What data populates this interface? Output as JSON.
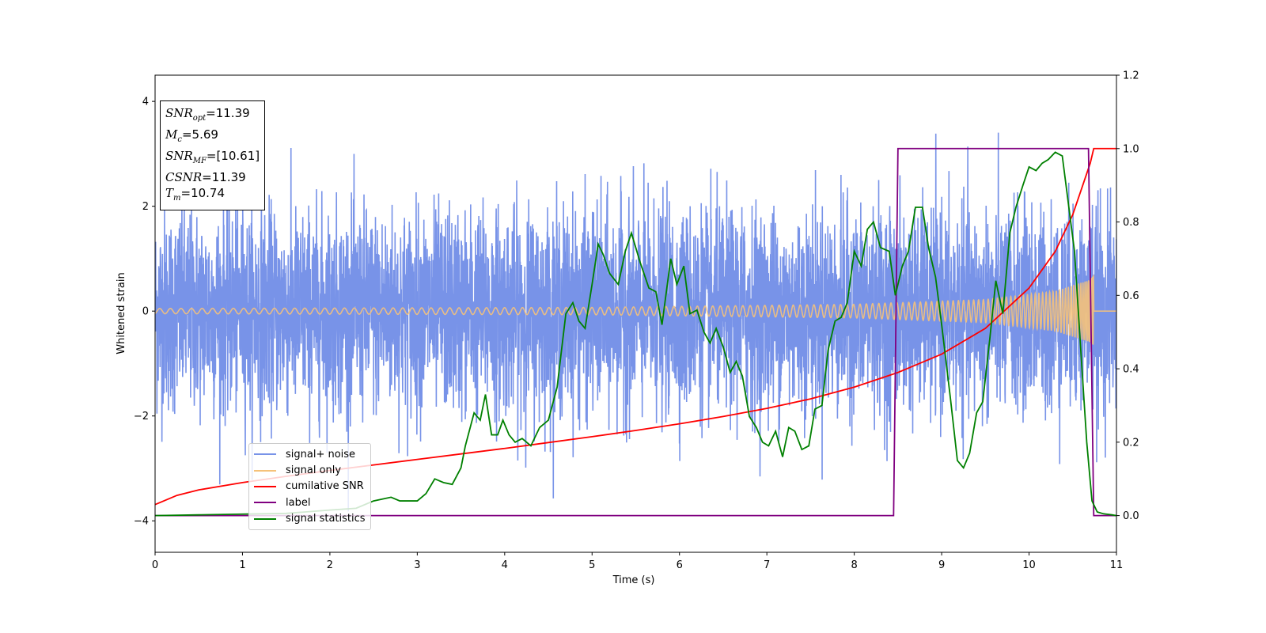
{
  "chart_data": {
    "type": "line",
    "xlabel": "Time (s)",
    "ylabel": "Whitened strain",
    "xlim": [
      0,
      11
    ],
    "ylim": [
      -4.6,
      4.5
    ],
    "y2lim": [
      -0.1,
      1.2
    ],
    "x_ticks": [
      "0",
      "1",
      "2",
      "3",
      "4",
      "5",
      "6",
      "7",
      "8",
      "9",
      "10",
      "11"
    ],
    "y_ticks": [
      "4",
      "2",
      "0",
      "−2",
      "−4"
    ],
    "y2_ticks": [
      "1.2",
      "1.0",
      "0.8",
      "0.6",
      "0.4",
      "0.2",
      "0.0"
    ],
    "legend_position": "lower-left",
    "annotation": {
      "snr_opt": {
        "sym": "SNR",
        "sub": "opt",
        "val": "=11.39"
      },
      "mc": {
        "sym": "M",
        "sub": "c",
        "val": "=5.69"
      },
      "snr_mf": {
        "sym": "SNR",
        "sub": "MF",
        "val": "=[10.61]"
      },
      "csnr": {
        "sym": "CSNR",
        "sub": "",
        "val": "=11.39"
      },
      "tm": {
        "sym": "T",
        "sub": "m",
        "val": "=10.74"
      }
    },
    "series": [
      {
        "name": "signal+ noise",
        "color": "#7893e8",
        "axis": "left",
        "description_type": "noise",
        "core_amplitude": 1.6,
        "spike_amplitude": 4.1
      },
      {
        "name": "signal only",
        "color": "#f5c27a",
        "axis": "left",
        "envelope": {
          "x": [
            0,
            5,
            8,
            9.5,
            10.3,
            10.7,
            10.74
          ],
          "amp": [
            0.05,
            0.07,
            0.13,
            0.22,
            0.38,
            0.6,
            0.7
          ]
        }
      },
      {
        "name": "cumilative SNR",
        "color": "#ff0000",
        "axis": "right",
        "x": [
          0,
          0.25,
          0.5,
          1,
          1.5,
          2,
          2.5,
          3,
          3.5,
          4,
          4.5,
          5,
          5.5,
          6,
          6.5,
          7,
          7.5,
          8,
          8.5,
          9,
          9.5,
          10,
          10.3,
          10.5,
          10.6,
          10.7,
          10.74,
          10.78,
          11
        ],
        "y": [
          0.03,
          0.055,
          0.07,
          0.09,
          0.107,
          0.123,
          0.138,
          0.153,
          0.168,
          0.183,
          0.199,
          0.215,
          0.232,
          0.25,
          0.27,
          0.292,
          0.318,
          0.35,
          0.39,
          0.44,
          0.51,
          0.62,
          0.72,
          0.82,
          0.89,
          0.96,
          1.0,
          1.0,
          1.0
        ]
      },
      {
        "name": "label",
        "color": "#800080",
        "axis": "right",
        "x": [
          0,
          8.45,
          8.5,
          10.68,
          10.74,
          11
        ],
        "y": [
          0,
          0,
          1,
          1,
          0,
          0
        ]
      },
      {
        "name": "signal statistics",
        "color": "#008000",
        "axis": "right",
        "x": [
          0,
          0.5,
          1,
          1.5,
          2,
          2.3,
          2.5,
          2.7,
          2.8,
          3.0,
          3.1,
          3.2,
          3.3,
          3.4,
          3.5,
          3.55,
          3.65,
          3.72,
          3.78,
          3.85,
          3.92,
          3.98,
          4.05,
          4.12,
          4.2,
          4.3,
          4.4,
          4.5,
          4.6,
          4.7,
          4.78,
          4.85,
          4.92,
          5.0,
          5.07,
          5.13,
          5.2,
          5.3,
          5.38,
          5.45,
          5.55,
          5.65,
          5.73,
          5.8,
          5.9,
          5.97,
          6.05,
          6.12,
          6.2,
          6.28,
          6.35,
          6.42,
          6.5,
          6.58,
          6.65,
          6.72,
          6.8,
          6.88,
          6.95,
          7.02,
          7.1,
          7.18,
          7.25,
          7.32,
          7.4,
          7.48,
          7.55,
          7.63,
          7.7,
          7.78,
          7.85,
          7.92,
          8.0,
          8.08,
          8.15,
          8.22,
          8.3,
          8.4,
          8.47,
          8.55,
          8.62,
          8.7,
          8.78,
          8.85,
          8.93,
          9.0,
          9.1,
          9.18,
          9.25,
          9.32,
          9.4,
          9.47,
          9.55,
          9.62,
          9.7,
          9.78,
          9.85,
          9.93,
          10.0,
          10.08,
          10.15,
          10.22,
          10.3,
          10.38,
          10.45,
          10.52,
          10.6,
          10.66,
          10.72,
          10.78,
          10.85,
          10.95,
          11.0
        ],
        "y": [
          0,
          0.002,
          0.004,
          0.006,
          0.015,
          0.02,
          0.04,
          0.05,
          0.04,
          0.04,
          0.06,
          0.1,
          0.09,
          0.085,
          0.13,
          0.19,
          0.28,
          0.26,
          0.33,
          0.22,
          0.22,
          0.26,
          0.22,
          0.2,
          0.21,
          0.19,
          0.24,
          0.26,
          0.35,
          0.55,
          0.58,
          0.53,
          0.51,
          0.63,
          0.74,
          0.71,
          0.66,
          0.63,
          0.72,
          0.77,
          0.69,
          0.62,
          0.61,
          0.52,
          0.7,
          0.63,
          0.68,
          0.55,
          0.56,
          0.5,
          0.47,
          0.51,
          0.46,
          0.39,
          0.42,
          0.38,
          0.27,
          0.24,
          0.2,
          0.19,
          0.23,
          0.16,
          0.24,
          0.23,
          0.18,
          0.19,
          0.29,
          0.3,
          0.45,
          0.53,
          0.54,
          0.58,
          0.72,
          0.68,
          0.78,
          0.8,
          0.73,
          0.72,
          0.6,
          0.68,
          0.72,
          0.84,
          0.84,
          0.73,
          0.65,
          0.52,
          0.32,
          0.15,
          0.13,
          0.17,
          0.28,
          0.31,
          0.48,
          0.64,
          0.55,
          0.77,
          0.84,
          0.9,
          0.95,
          0.94,
          0.96,
          0.97,
          0.99,
          0.98,
          0.85,
          0.72,
          0.42,
          0.2,
          0.04,
          0.01,
          0.005,
          0.002,
          0.0
        ]
      }
    ]
  }
}
